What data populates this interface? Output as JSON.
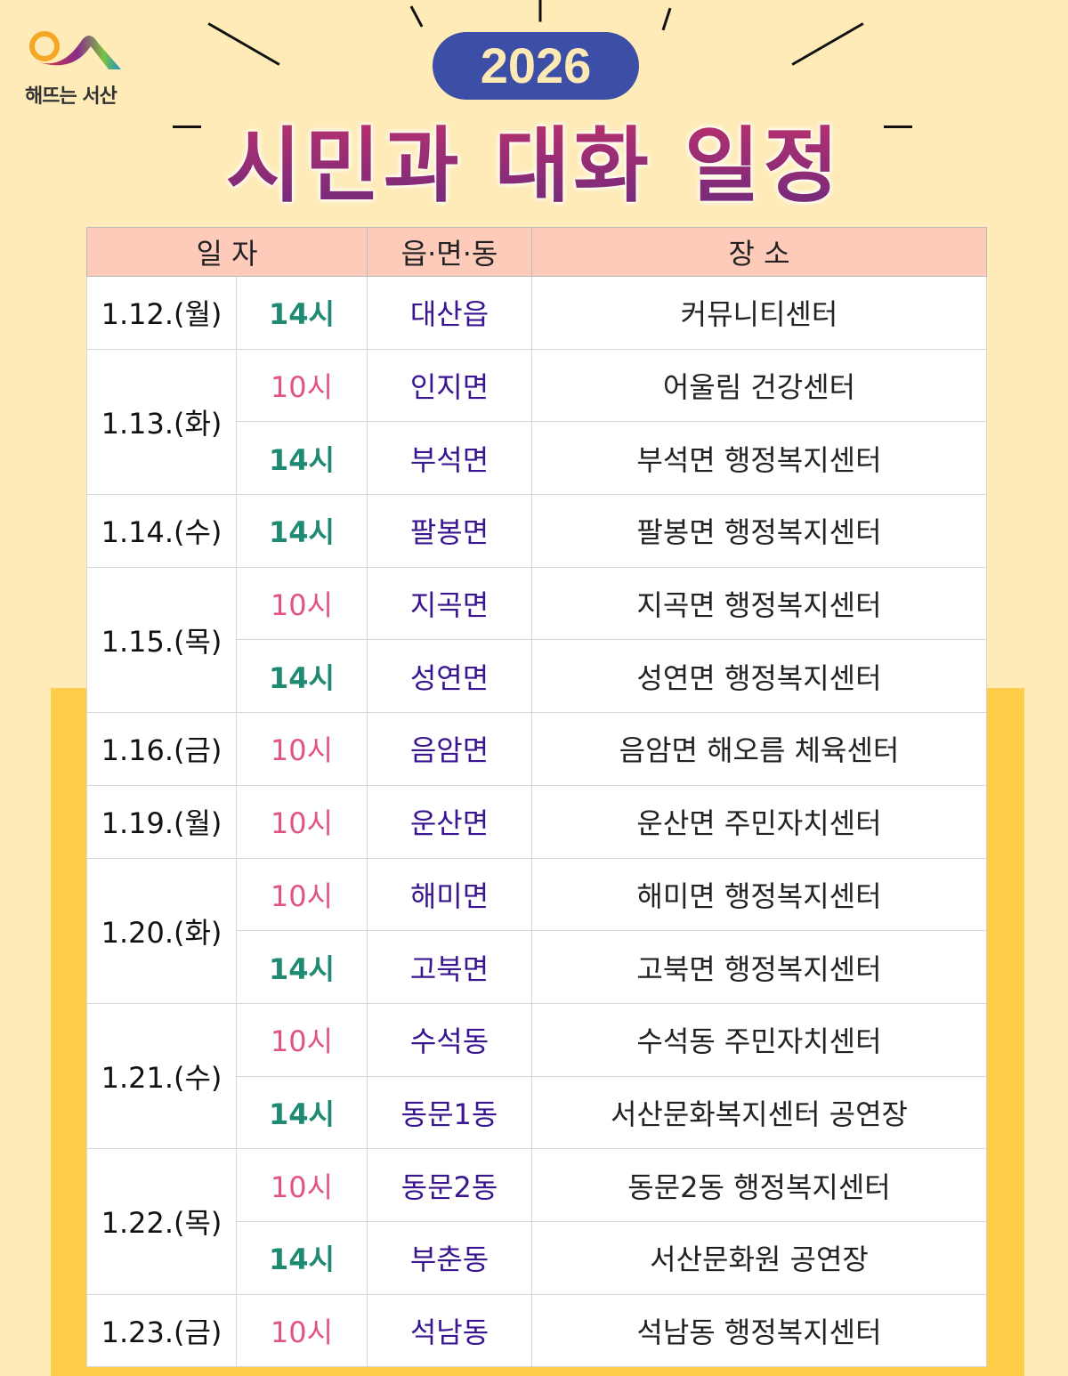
{
  "logo": {
    "text": "해뜨는 서산"
  },
  "year": "2026",
  "title": "시민과 대화 일정",
  "colors": {
    "background": "#feebb8",
    "band": "#fdcd4a",
    "header": "#fecbbb",
    "time_10": "#e0547f",
    "time_14": "#1e8a72",
    "area": "#3a1590",
    "year_badge": "#3d4ea6"
  },
  "table": {
    "headers": [
      "일  자",
      "읍·면·동",
      "장   소"
    ],
    "groups": [
      {
        "date": "1.12.(월)",
        "sessions": [
          {
            "time": "14시",
            "area": "대산읍",
            "place": "커뮤니티센터"
          }
        ]
      },
      {
        "date": "1.13.(화)",
        "sessions": [
          {
            "time": "10시",
            "area": "인지면",
            "place": "어울림 건강센터"
          },
          {
            "time": "14시",
            "area": "부석면",
            "place": "부석면 행정복지센터"
          }
        ]
      },
      {
        "date": "1.14.(수)",
        "sessions": [
          {
            "time": "14시",
            "area": "팔봉면",
            "place": "팔봉면 행정복지센터"
          }
        ]
      },
      {
        "date": "1.15.(목)",
        "sessions": [
          {
            "time": "10시",
            "area": "지곡면",
            "place": "지곡면 행정복지센터"
          },
          {
            "time": "14시",
            "area": "성연면",
            "place": "성연면 행정복지센터"
          }
        ]
      },
      {
        "date": "1.16.(금)",
        "sessions": [
          {
            "time": "10시",
            "area": "음암면",
            "place": "음암면 해오름 체육센터"
          }
        ]
      },
      {
        "date": "1.19.(월)",
        "sessions": [
          {
            "time": "10시",
            "area": "운산면",
            "place": "운산면 주민자치센터"
          }
        ]
      },
      {
        "date": "1.20.(화)",
        "sessions": [
          {
            "time": "10시",
            "area": "해미면",
            "place": "해미면 행정복지센터"
          },
          {
            "time": "14시",
            "area": "고북면",
            "place": "고북면 행정복지센터"
          }
        ]
      },
      {
        "date": "1.21.(수)",
        "sessions": [
          {
            "time": "10시",
            "area": "수석동",
            "place": "수석동 주민자치센터"
          },
          {
            "time": "14시",
            "area": "동문1동",
            "place": "서산문화복지센터 공연장"
          }
        ]
      },
      {
        "date": "1.22.(목)",
        "sessions": [
          {
            "time": "10시",
            "area": "동문2동",
            "place": "동문2동 행정복지센터"
          },
          {
            "time": "14시",
            "area": "부춘동",
            "place": "서산문화원 공연장"
          }
        ]
      },
      {
        "date": "1.23.(금)",
        "sessions": [
          {
            "time": "10시",
            "area": "석남동",
            "place": "석남동 행정복지센터"
          }
        ]
      }
    ]
  }
}
